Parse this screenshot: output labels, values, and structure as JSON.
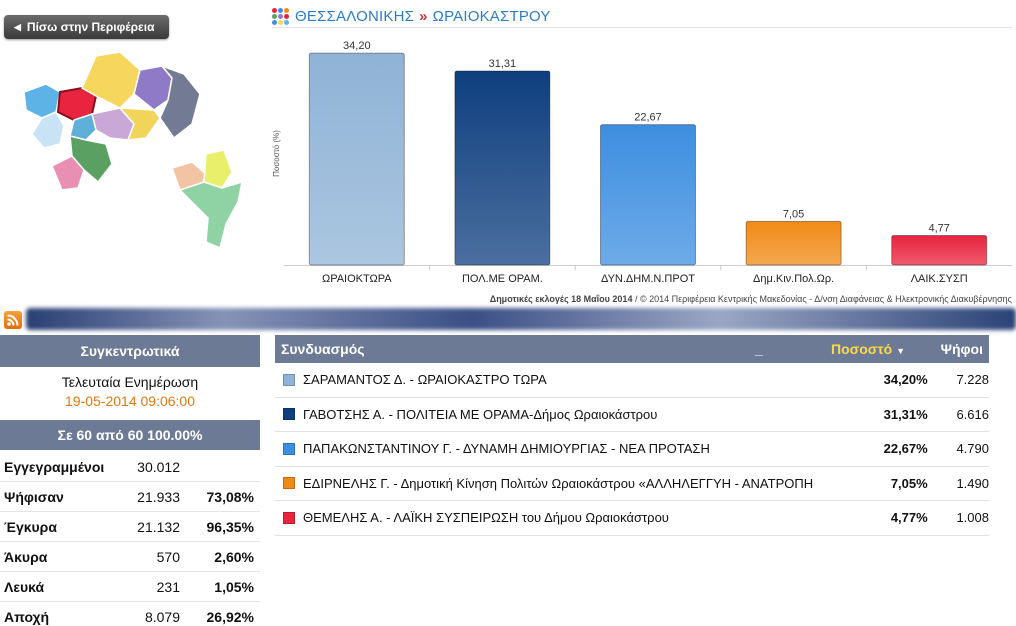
{
  "nav": {
    "back_label": "Πίσω στην Περιφέρεια"
  },
  "header": {
    "region": "ΘΕΣΣΑΛΟΝΙΚΗΣ",
    "separator": "»",
    "municipality": "ΩΡΑΙΟΚΑΣΤΡΟΥ"
  },
  "chart_data": {
    "type": "bar",
    "categories": [
      "ΩΡΑΙΟΚΤΩΡΑ",
      "ΠΟΛ.ΜΕ ΟΡΑΜ.",
      "ΔΥΝ.ΔΗΜ.Ν.ΠΡΟΤ",
      "Δημ.Κιν.Πολ.Ωρ.",
      "ΛΑΙΚ.ΣΥΣΠ"
    ],
    "values": [
      34.2,
      31.31,
      22.67,
      7.05,
      4.77
    ],
    "value_labels": [
      "34,20",
      "31,31",
      "22,67",
      "7,05",
      "4,77"
    ],
    "colors": [
      "#8fb3d6",
      "#0f3f7f",
      "#3d8ee0",
      "#f08a16",
      "#e8243e"
    ],
    "ylabel": "Ποσοστό (%)",
    "ylim": [
      0,
      36
    ],
    "grid": false
  },
  "credit": {
    "bold": "Δημοτικές εκλογές 18 Μαΐου 2014",
    "rest": " / © 2014 Περιφέρεια Κεντρικής Μακεδονίας - Δ/νση Διαφάνειας & Ηλεκτρονικής Διακυβέρνησης"
  },
  "summary": {
    "title": "Συγκεντρωτικά",
    "last_update_label": "Τελευταία Ενημέρωση",
    "last_update_value": "19-05-2014 09:06:00",
    "counted": "Σε 60 από 60 100.00%",
    "rows": [
      {
        "label": "Εγγεγραμμένοι",
        "value": "30.012",
        "pct": ""
      },
      {
        "label": "Ψήφισαν",
        "value": "21.933",
        "pct": "73,08%"
      },
      {
        "label": "Έγκυρα",
        "value": "21.132",
        "pct": "96,35%"
      },
      {
        "label": "Άκυρα",
        "value": "570",
        "pct": "2,60%"
      },
      {
        "label": "Λευκά",
        "value": "231",
        "pct": "1,05%"
      },
      {
        "label": "Αποχή",
        "value": "8.079",
        "pct": "26,92%"
      }
    ]
  },
  "results": {
    "headers": {
      "coalition": "Συνδυασμός",
      "dash": "_",
      "percent": "Ποσοστό",
      "votes": "Ψήφοι"
    },
    "rows": [
      {
        "color": "#8fb3d6",
        "name": "ΣΑΡΑΜΑΝΤΟΣ Δ. - ΩΡΑΙΟΚΑΣΤΡΟ ΤΩΡΑ",
        "pct": "34,20%",
        "votes": "7.228"
      },
      {
        "color": "#0f3f7f",
        "name": "ΓΑΒΟΤΣΗΣ Α. - ΠΟΛΙΤΕΙΑ ΜΕ ΟΡΑΜΑ-Δήμος Ωραιοκάστρου",
        "pct": "31,31%",
        "votes": "6.616"
      },
      {
        "color": "#3d8ee0",
        "name": "ΠΑΠΑΚΩΝΣΤΑΝΤΙΝΟΥ Γ. - ΔΥΝΑΜΗ ΔΗΜΙΟΥΡΓΙΑΣ - ΝΕΑ ΠΡΟΤΑΣΗ",
        "pct": "22,67%",
        "votes": "4.790"
      },
      {
        "color": "#f08a16",
        "name": "ΕΔΙΡΝΕΛΗΣ Γ. - Δημοτική Κίνηση Πολιτών Ωραιοκάστρου «ΑΛΛΗΛΕΓΓΥΗ - ΑΝΑΤΡΟΠΗ",
        "pct": "7,05%",
        "votes": "1.490"
      },
      {
        "color": "#e8243e",
        "name": "ΘΕΜΕΛΗΣ Α. - ΛΑΪΚΗ ΣΥΣΠΕΙΡΩΣΗ του Δήμου Ωραιοκάστρου",
        "pct": "4,77%",
        "votes": "1.008"
      }
    ]
  }
}
